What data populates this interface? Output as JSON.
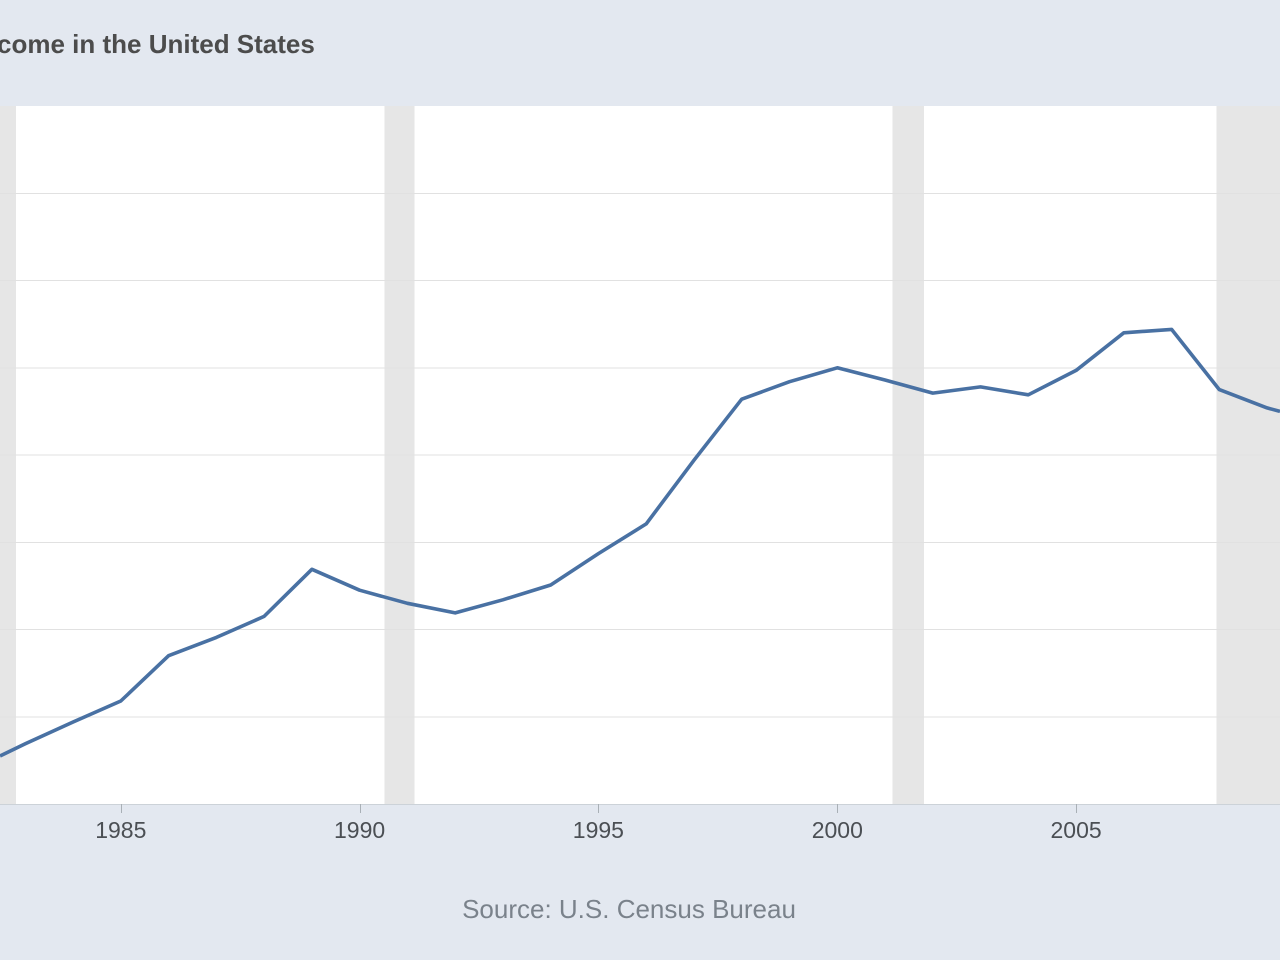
{
  "page": {
    "title_visible": "come in the United States",
    "source_caption": "Source: U.S. Census Bureau"
  },
  "colors": {
    "page_background": "#e3e8f0",
    "plot_background": "#ffffff",
    "recession_band": "#e6e6e6",
    "gridline": "#e1e1e1",
    "line": "#4971a3",
    "axis_line": "#ccd2d8",
    "tick_mark": "#a9b0b6",
    "tick_label_text": "#4b4f54",
    "title_text": "#4c4c4c",
    "source_text": "#7a828b"
  },
  "chart_data": {
    "type": "line",
    "title_visible": "come in the United States",
    "title_note": "title is cropped at the left edge of the screenshot",
    "source": "Source: U.S. Census Bureau",
    "xlabel": "",
    "ylabel": "",
    "legend": "none",
    "grid": "horizontal only",
    "x_ticks": [
      "1985",
      "1990",
      "1995",
      "2000",
      "2005"
    ],
    "x_tick_years": [
      1985,
      1990,
      1995,
      2000,
      2005
    ],
    "x_range_years": [
      1982.47,
      2009.27
    ],
    "y_range_units": [
      0,
      8
    ],
    "y_gridline_units": [
      1,
      2,
      3,
      4,
      5,
      6,
      7
    ],
    "y_axis_note": "y-axis tick labels are cropped out of view; values are given in horizontal-gridline units above the x-axis",
    "x": [
      1982.47,
      1983,
      1984,
      1985,
      1986,
      1987,
      1988,
      1989,
      1990,
      1991,
      1992,
      1993,
      1994,
      1995,
      1996,
      1997,
      1998,
      1999,
      2000,
      2001,
      2002,
      2003,
      2004,
      2005,
      2006,
      2007,
      2008,
      2009,
      2009.27
    ],
    "values_units": [
      0.55,
      0.69,
      0.94,
      1.18,
      1.7,
      1.91,
      2.15,
      2.69,
      2.45,
      2.3,
      2.19,
      2.34,
      2.51,
      2.87,
      3.21,
      3.94,
      4.64,
      4.84,
      5.0,
      4.86,
      4.71,
      4.78,
      4.69,
      4.97,
      5.4,
      5.44,
      4.75,
      4.54,
      4.5
    ],
    "recession_bands_years": [
      [
        1982.47,
        1982.8
      ],
      [
        1990.52,
        1991.15
      ],
      [
        2001.16,
        2001.82
      ],
      [
        2007.94,
        2009.27
      ]
    ]
  }
}
